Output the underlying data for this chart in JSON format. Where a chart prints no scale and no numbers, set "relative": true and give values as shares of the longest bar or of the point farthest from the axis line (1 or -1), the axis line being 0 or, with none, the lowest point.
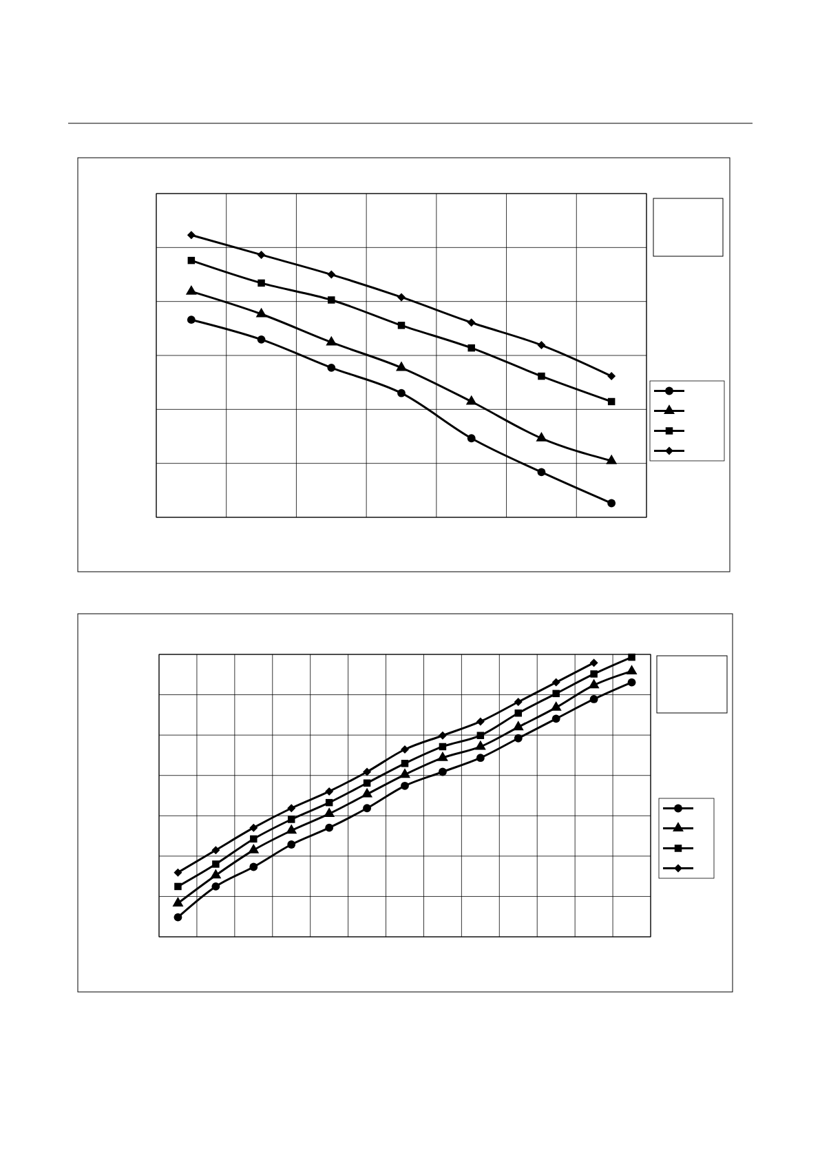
{
  "chart_data": [
    {
      "type": "line",
      "relative": true,
      "grid": true,
      "categories": [
        null,
        null,
        null,
        null,
        null,
        null,
        null
      ],
      "series": [
        {
          "color": "#000000",
          "marker": "circle",
          "values": [
            0.7,
            0.63,
            0.53,
            0.44,
            0.28,
            0.16,
            0.05
          ]
        },
        {
          "color": "#000000",
          "marker": "triangle",
          "values": [
            0.8,
            0.72,
            0.62,
            0.53,
            0.41,
            0.28,
            0.2
          ]
        },
        {
          "color": "#000000",
          "marker": "square",
          "values": [
            0.91,
            0.83,
            0.77,
            0.68,
            0.6,
            0.5,
            0.41
          ]
        },
        {
          "color": "#000000",
          "marker": "diamond",
          "values": [
            1,
            0.93,
            0.86,
            0.78,
            0.69,
            0.61,
            0.5
          ]
        }
      ]
    },
    {
      "type": "line",
      "relative": true,
      "grid": true,
      "categories": [
        null,
        null,
        null,
        null,
        null,
        null,
        null,
        null,
        null,
        null,
        null,
        null,
        null
      ],
      "series": [
        {
          "color": "#000000",
          "marker": "circle",
          "values": [
            0.07,
            0.18,
            0.25,
            0.33,
            0.39,
            0.46,
            0.54,
            0.59,
            0.64,
            0.71,
            0.78,
            0.85,
            0.91
          ]
        },
        {
          "color": "#000000",
          "marker": "triangle",
          "values": [
            0.12,
            0.22,
            0.31,
            0.38,
            0.44,
            0.51,
            0.58,
            0.64,
            0.68,
            0.75,
            0.82,
            0.9,
            0.95
          ]
        },
        {
          "color": "#000000",
          "marker": "square",
          "values": [
            0.18,
            0.26,
            0.35,
            0.42,
            0.48,
            0.55,
            0.62,
            0.68,
            0.72,
            0.8,
            0.87,
            0.94,
            1
          ]
        },
        {
          "color": "#000000",
          "marker": "diamond",
          "values": [
            0.23,
            0.31,
            0.39,
            0.46,
            0.52,
            0.59,
            0.67,
            0.72,
            0.77,
            0.84,
            0.91,
            0.98,
            null
          ]
        }
      ]
    }
  ]
}
